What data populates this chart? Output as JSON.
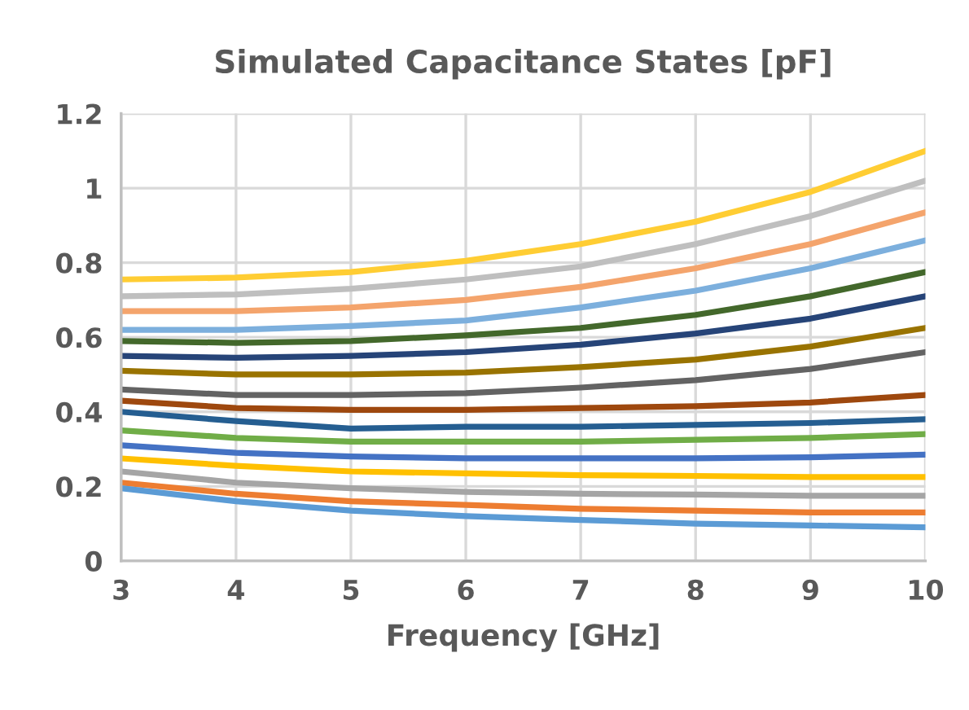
{
  "chart_data": {
    "type": "line",
    "title": "Simulated Capacitance States [pF]",
    "xlabel": "Frequency [GHz]",
    "x": [
      3,
      4,
      5,
      6,
      7,
      8,
      9,
      10
    ],
    "xlim": [
      3,
      10
    ],
    "xticks": [
      3,
      4,
      5,
      6,
      7,
      8,
      9,
      10
    ],
    "ylim": [
      0,
      1.2
    ],
    "yticks": [
      0,
      0.2,
      0.4,
      0.6,
      0.8,
      1,
      1.2
    ],
    "grid": true,
    "marker": "none",
    "line_style": "solid",
    "series": [
      {
        "color": "#ffcd33",
        "values": [
          0.755,
          0.76,
          0.775,
          0.805,
          0.85,
          0.91,
          0.99,
          1.1
        ]
      },
      {
        "color": "#bfbfbf",
        "values": [
          0.71,
          0.715,
          0.73,
          0.755,
          0.79,
          0.85,
          0.925,
          1.02
        ]
      },
      {
        "color": "#f4a46c",
        "values": [
          0.67,
          0.67,
          0.68,
          0.7,
          0.735,
          0.785,
          0.85,
          0.935
        ]
      },
      {
        "color": "#7cafdd",
        "values": [
          0.62,
          0.62,
          0.63,
          0.645,
          0.68,
          0.725,
          0.785,
          0.86
        ]
      },
      {
        "color": "#43682b",
        "values": [
          0.59,
          0.585,
          0.59,
          0.605,
          0.625,
          0.66,
          0.71,
          0.775
        ]
      },
      {
        "color": "#264478",
        "values": [
          0.55,
          0.545,
          0.55,
          0.56,
          0.58,
          0.61,
          0.65,
          0.71
        ]
      },
      {
        "color": "#997300",
        "values": [
          0.51,
          0.5,
          0.5,
          0.505,
          0.52,
          0.54,
          0.575,
          0.625
        ]
      },
      {
        "color": "#636363",
        "values": [
          0.46,
          0.445,
          0.445,
          0.45,
          0.465,
          0.485,
          0.515,
          0.56
        ]
      },
      {
        "color": "#9e480e",
        "values": [
          0.43,
          0.41,
          0.405,
          0.405,
          0.41,
          0.415,
          0.425,
          0.445
        ]
      },
      {
        "color": "#255e91",
        "values": [
          0.4,
          0.375,
          0.355,
          0.36,
          0.36,
          0.365,
          0.37,
          0.38
        ]
      },
      {
        "color": "#70ad47",
        "values": [
          0.35,
          0.33,
          0.32,
          0.32,
          0.32,
          0.325,
          0.33,
          0.34
        ]
      },
      {
        "color": "#4472c4",
        "values": [
          0.31,
          0.29,
          0.28,
          0.275,
          0.275,
          0.275,
          0.278,
          0.285
        ]
      },
      {
        "color": "#ffc000",
        "values": [
          0.275,
          0.255,
          0.24,
          0.235,
          0.23,
          0.228,
          0.225,
          0.225
        ]
      },
      {
        "color": "#a5a5a5",
        "values": [
          0.24,
          0.21,
          0.195,
          0.185,
          0.18,
          0.178,
          0.175,
          0.175
        ]
      },
      {
        "color": "#ed7d31",
        "values": [
          0.21,
          0.18,
          0.16,
          0.15,
          0.14,
          0.135,
          0.13,
          0.13
        ]
      },
      {
        "color": "#5b9bd5",
        "values": [
          0.195,
          0.16,
          0.135,
          0.12,
          0.11,
          0.1,
          0.095,
          0.09
        ]
      }
    ]
  }
}
